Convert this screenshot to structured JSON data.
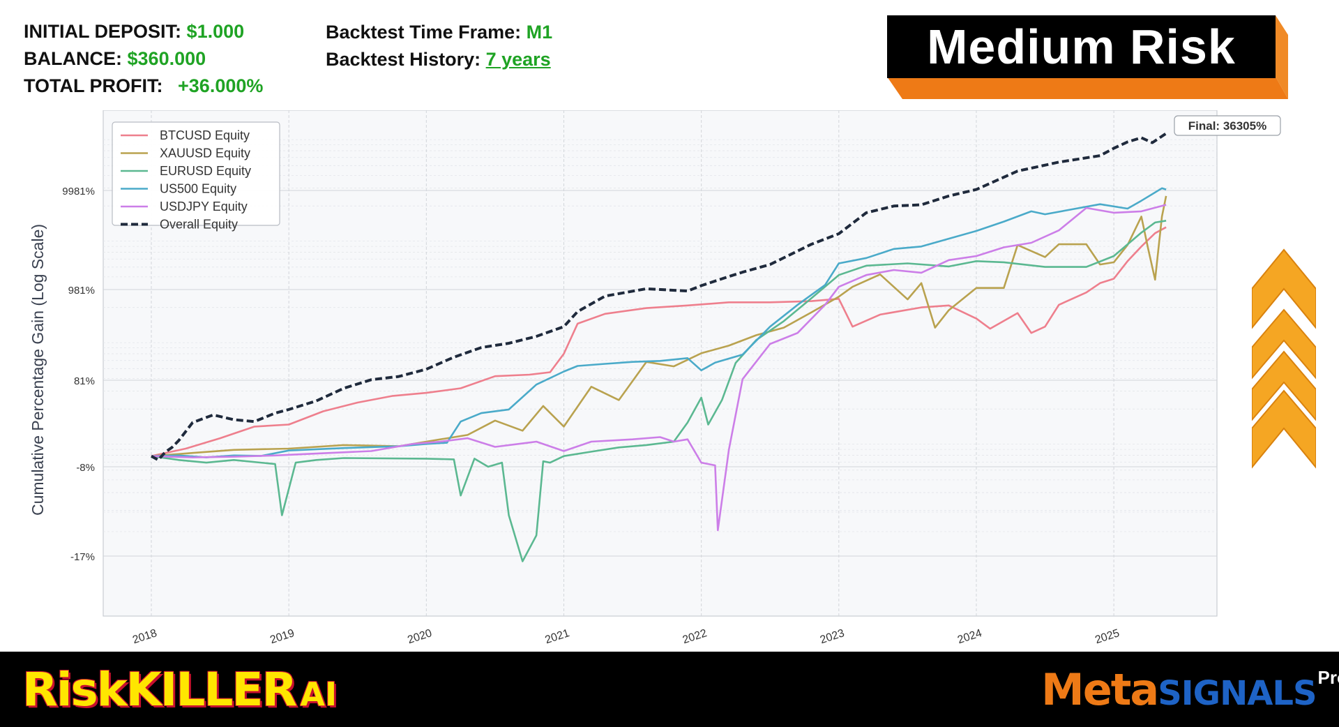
{
  "header": {
    "initial_deposit_label": "INITIAL DEPOSIT:",
    "initial_deposit_value": "$1.000",
    "balance_label": "BALANCE:",
    "balance_value": "$360.000",
    "total_profit_label": "TOTAL PROFIT:",
    "total_profit_value": "+36.000%",
    "timeframe_label": "Backtest Time Frame:",
    "timeframe_value": "M1",
    "history_label": "Backtest History:",
    "history_value": "7 years",
    "risk_badge": "Medium Risk"
  },
  "colors": {
    "green_text": "#1fa324",
    "badge_bg": "#000000",
    "badge_accent": "#ee7a16",
    "arrow": "#f5a623"
  },
  "icons": [
    "triple-chevron-up-icon"
  ],
  "footer": {
    "brand_left": "RiskKILLER",
    "brand_left_suffix": "AI",
    "brand_right_a": "Meta",
    "brand_right_b": "SIGNALS",
    "brand_right_c": "Pro"
  },
  "chart_data": {
    "type": "line",
    "ylabel": "Cumulative Percentage Gain (Log Scale)",
    "xlabel": "",
    "y_scale": "log",
    "y_ticks": [
      "9981%",
      "981%",
      "81%",
      "-8%",
      "-17%"
    ],
    "x_ticks": [
      "2018",
      "2019",
      "2020",
      "2021",
      "2022",
      "2023",
      "2024",
      "2025"
    ],
    "xlim": [
      2017.65,
      2025.75
    ],
    "grid": true,
    "legend_placement": "top-left",
    "annotation": "Final: 36305%",
    "series": [
      {
        "name": "BTCUSD Equity",
        "color": "#ee7f8d",
        "dashed": false,
        "points": [
          [
            2018.0,
            0
          ],
          [
            2018.25,
            6
          ],
          [
            2018.5,
            15
          ],
          [
            2018.75,
            26
          ],
          [
            2019.0,
            28
          ],
          [
            2019.25,
            42
          ],
          [
            2019.5,
            52
          ],
          [
            2019.75,
            60
          ],
          [
            2020.0,
            64
          ],
          [
            2020.25,
            70
          ],
          [
            2020.5,
            96
          ],
          [
            2020.75,
            102
          ],
          [
            2020.9,
            112
          ],
          [
            2021.0,
            205
          ],
          [
            2021.1,
            452
          ],
          [
            2021.3,
            570
          ],
          [
            2021.6,
            650
          ],
          [
            2021.9,
            690
          ],
          [
            2022.2,
            740
          ],
          [
            2022.5,
            740
          ],
          [
            2022.8,
            760
          ],
          [
            2023.0,
            800
          ],
          [
            2023.1,
            420
          ],
          [
            2023.3,
            560
          ],
          [
            2023.6,
            660
          ],
          [
            2023.8,
            690
          ],
          [
            2024.0,
            510
          ],
          [
            2024.1,
            400
          ],
          [
            2024.3,
            580
          ],
          [
            2024.4,
            360
          ],
          [
            2024.5,
            420
          ],
          [
            2024.6,
            700
          ],
          [
            2024.8,
            920
          ],
          [
            2024.9,
            1150
          ],
          [
            2025.0,
            1280
          ],
          [
            2025.1,
            1950
          ],
          [
            2025.2,
            2750
          ],
          [
            2025.3,
            3750
          ],
          [
            2025.38,
            4300
          ]
        ]
      },
      {
        "name": "XAUUSD Equity",
        "color": "#b9a24f",
        "dashed": false,
        "points": [
          [
            2018.0,
            0
          ],
          [
            2018.3,
            2.5
          ],
          [
            2018.6,
            5
          ],
          [
            2019.0,
            6
          ],
          [
            2019.4,
            9
          ],
          [
            2019.8,
            8
          ],
          [
            2020.0,
            12
          ],
          [
            2020.3,
            18
          ],
          [
            2020.5,
            32
          ],
          [
            2020.7,
            22
          ],
          [
            2020.85,
            48
          ],
          [
            2021.0,
            26
          ],
          [
            2021.2,
            72
          ],
          [
            2021.4,
            55
          ],
          [
            2021.6,
            160
          ],
          [
            2021.8,
            138
          ],
          [
            2022.0,
            208
          ],
          [
            2022.2,
            258
          ],
          [
            2022.4,
            340
          ],
          [
            2022.6,
            410
          ],
          [
            2022.8,
            590
          ],
          [
            2023.0,
            840
          ],
          [
            2023.1,
            1050
          ],
          [
            2023.3,
            1420
          ],
          [
            2023.5,
            790
          ],
          [
            2023.6,
            1150
          ],
          [
            2023.7,
            410
          ],
          [
            2023.8,
            620
          ],
          [
            2024.0,
            1020
          ],
          [
            2024.2,
            1020
          ],
          [
            2024.3,
            2850
          ],
          [
            2024.5,
            2150
          ],
          [
            2024.6,
            2900
          ],
          [
            2024.8,
            2900
          ],
          [
            2024.9,
            1800
          ],
          [
            2025.0,
            1900
          ],
          [
            2025.1,
            2850
          ],
          [
            2025.2,
            5500
          ],
          [
            2025.25,
            2600
          ],
          [
            2025.3,
            1250
          ],
          [
            2025.35,
            5500
          ],
          [
            2025.38,
            8800
          ]
        ]
      },
      {
        "name": "EURUSD Equity",
        "color": "#5bb891",
        "dashed": false,
        "points": [
          [
            2018.0,
            0
          ],
          [
            2018.2,
            -3
          ],
          [
            2018.4,
            -5
          ],
          [
            2018.6,
            -3
          ],
          [
            2018.9,
            -6
          ],
          [
            2018.95,
            -13
          ],
          [
            2019.05,
            -5
          ],
          [
            2019.2,
            -3
          ],
          [
            2019.4,
            -1.5
          ],
          [
            2020.0,
            -2
          ],
          [
            2020.2,
            -2.5
          ],
          [
            2020.25,
            -11
          ],
          [
            2020.35,
            -2
          ],
          [
            2020.45,
            -8
          ],
          [
            2020.55,
            -5
          ],
          [
            2020.6,
            -13
          ],
          [
            2020.7,
            -17.5
          ],
          [
            2020.8,
            -15
          ],
          [
            2020.85,
            -4
          ],
          [
            2020.9,
            -5
          ],
          [
            2021.0,
            0
          ],
          [
            2021.2,
            3.5
          ],
          [
            2021.4,
            7
          ],
          [
            2021.6,
            9
          ],
          [
            2021.8,
            12
          ],
          [
            2021.9,
            30
          ],
          [
            2022.0,
            58
          ],
          [
            2022.05,
            28
          ],
          [
            2022.15,
            55
          ],
          [
            2022.25,
            155
          ],
          [
            2022.4,
            300
          ],
          [
            2022.6,
            480
          ],
          [
            2022.8,
            810
          ],
          [
            2023.0,
            1400
          ],
          [
            2023.2,
            1750
          ],
          [
            2023.5,
            1850
          ],
          [
            2023.8,
            1720
          ],
          [
            2024.0,
            1950
          ],
          [
            2024.2,
            1900
          ],
          [
            2024.5,
            1700
          ],
          [
            2024.8,
            1700
          ],
          [
            2025.0,
            2200
          ],
          [
            2025.2,
            3800
          ],
          [
            2025.3,
            4800
          ],
          [
            2025.38,
            5000
          ]
        ]
      },
      {
        "name": "US500 Equity",
        "color": "#4aaac9",
        "dashed": false,
        "points": [
          [
            2018.0,
            0
          ],
          [
            2018.2,
            0.5
          ],
          [
            2018.4,
            -1
          ],
          [
            2018.6,
            0.5
          ],
          [
            2018.8,
            0.2
          ],
          [
            2019.0,
            4.5
          ],
          [
            2019.4,
            6.5
          ],
          [
            2019.8,
            8
          ],
          [
            2020.0,
            10
          ],
          [
            2020.15,
            11
          ],
          [
            2020.25,
            31
          ],
          [
            2020.4,
            40
          ],
          [
            2020.6,
            44
          ],
          [
            2020.8,
            75
          ],
          [
            2021.0,
            115
          ],
          [
            2021.1,
            140
          ],
          [
            2021.3,
            150
          ],
          [
            2021.5,
            160
          ],
          [
            2021.7,
            165
          ],
          [
            2021.9,
            180
          ],
          [
            2022.0,
            120
          ],
          [
            2022.1,
            156
          ],
          [
            2022.3,
            200
          ],
          [
            2022.5,
            420
          ],
          [
            2022.7,
            700
          ],
          [
            2022.9,
            1100
          ],
          [
            2023.0,
            1850
          ],
          [
            2023.2,
            2100
          ],
          [
            2023.4,
            2600
          ],
          [
            2023.6,
            2750
          ],
          [
            2023.8,
            3300
          ],
          [
            2024.0,
            3950
          ],
          [
            2024.2,
            4900
          ],
          [
            2024.4,
            6200
          ],
          [
            2024.5,
            5800
          ],
          [
            2024.7,
            6500
          ],
          [
            2024.9,
            7300
          ],
          [
            2025.1,
            6600
          ],
          [
            2025.2,
            7900
          ],
          [
            2025.35,
            10500
          ],
          [
            2025.38,
            10200
          ]
        ]
      },
      {
        "name": "USDJPY Equity",
        "color": "#cc7ee8",
        "dashed": false,
        "points": [
          [
            2018.0,
            0
          ],
          [
            2018.3,
            -1
          ],
          [
            2018.6,
            -0.5
          ],
          [
            2018.9,
            0.5
          ],
          [
            2019.2,
            2
          ],
          [
            2019.6,
            4
          ],
          [
            2019.9,
            10
          ],
          [
            2020.1,
            12
          ],
          [
            2020.3,
            15
          ],
          [
            2020.5,
            7.5
          ],
          [
            2020.8,
            12
          ],
          [
            2021.0,
            4
          ],
          [
            2021.2,
            12
          ],
          [
            2021.5,
            14
          ],
          [
            2021.7,
            16
          ],
          [
            2021.8,
            12
          ],
          [
            2021.9,
            14
          ],
          [
            2022.0,
            -5
          ],
          [
            2022.1,
            -7
          ],
          [
            2022.12,
            -14.5
          ],
          [
            2022.2,
            5
          ],
          [
            2022.3,
            85
          ],
          [
            2022.5,
            270
          ],
          [
            2022.7,
            360
          ],
          [
            2022.9,
            700
          ],
          [
            2023.0,
            1050
          ],
          [
            2023.2,
            1400
          ],
          [
            2023.4,
            1580
          ],
          [
            2023.6,
            1480
          ],
          [
            2023.8,
            2000
          ],
          [
            2024.0,
            2200
          ],
          [
            2024.2,
            2700
          ],
          [
            2024.4,
            3000
          ],
          [
            2024.6,
            4000
          ],
          [
            2024.8,
            6700
          ],
          [
            2025.0,
            6000
          ],
          [
            2025.2,
            6200
          ],
          [
            2025.38,
            7200
          ]
        ]
      },
      {
        "name": "Overall Equity",
        "color": "#1f2a3c",
        "dashed": true,
        "points": [
          [
            2018.0,
            0
          ],
          [
            2018.05,
            -3
          ],
          [
            2018.1,
            3
          ],
          [
            2018.15,
            7
          ],
          [
            2018.2,
            13
          ],
          [
            2018.3,
            30
          ],
          [
            2018.45,
            38
          ],
          [
            2018.6,
            33
          ],
          [
            2018.75,
            31
          ],
          [
            2018.9,
            40
          ],
          [
            2019.0,
            44
          ],
          [
            2019.2,
            54
          ],
          [
            2019.4,
            70
          ],
          [
            2019.6,
            83
          ],
          [
            2019.8,
            95
          ],
          [
            2020.0,
            125
          ],
          [
            2020.2,
            185
          ],
          [
            2020.4,
            245
          ],
          [
            2020.6,
            275
          ],
          [
            2020.8,
            330
          ],
          [
            2021.0,
            420
          ],
          [
            2021.1,
            600
          ],
          [
            2021.3,
            850
          ],
          [
            2021.6,
            1000
          ],
          [
            2021.9,
            950
          ],
          [
            2022.0,
            1080
          ],
          [
            2022.2,
            1350
          ],
          [
            2022.3,
            1500
          ],
          [
            2022.5,
            1800
          ],
          [
            2022.8,
            2900
          ],
          [
            2023.0,
            3700
          ],
          [
            2023.2,
            6000
          ],
          [
            2023.4,
            7000
          ],
          [
            2023.6,
            7200
          ],
          [
            2023.8,
            8800
          ],
          [
            2024.0,
            10200
          ],
          [
            2024.3,
            15500
          ],
          [
            2024.6,
            19000
          ],
          [
            2024.9,
            22000
          ],
          [
            2025.0,
            26000
          ],
          [
            2025.1,
            30000
          ],
          [
            2025.2,
            33000
          ],
          [
            2025.28,
            29500
          ],
          [
            2025.38,
            36305
          ]
        ]
      }
    ]
  }
}
